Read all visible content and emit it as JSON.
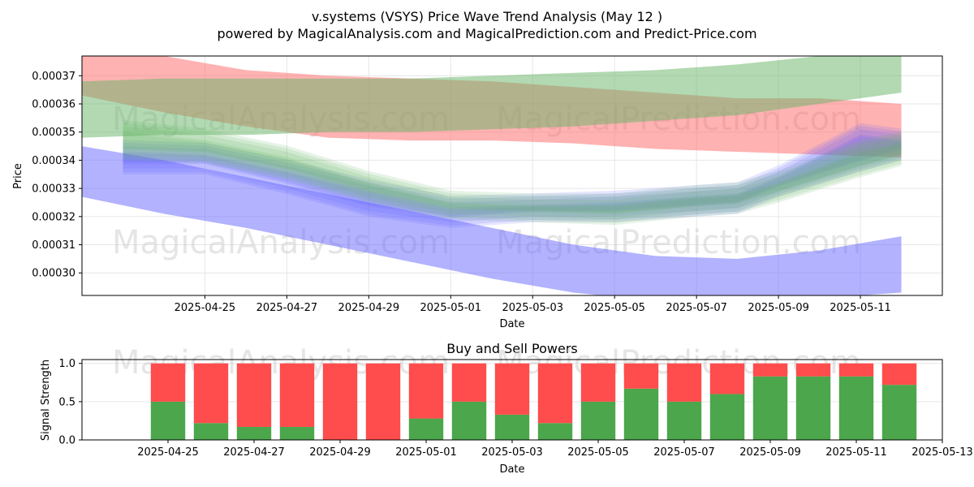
{
  "figure": {
    "title": "v.systems (VSYS) Price Wave Trend Analysis (May 12 )",
    "subtitle": "powered by MagicalAnalysis.com and MagicalPrediction.com and Predict-Price.com",
    "watermark_left": "MagicalAnalysis.com",
    "watermark_right": "MagicalPrediction.com"
  },
  "chart_data": [
    {
      "type": "area",
      "xlabel": "Date",
      "ylabel": "Price",
      "ylim": [
        0.000292,
        0.000377
      ],
      "xlim": [
        "2025-04-22",
        "2025-05-13"
      ],
      "grid": true,
      "x_ticks": [
        "2025-04-25",
        "2025-04-27",
        "2025-04-29",
        "2025-05-01",
        "2025-05-03",
        "2025-05-05",
        "2025-05-07",
        "2025-05-09",
        "2025-05-11"
      ],
      "y_ticks": [
        "0.00030",
        "0.00031",
        "0.00032",
        "0.00033",
        "0.00034",
        "0.00035",
        "0.00036",
        "0.00037"
      ],
      "colors": {
        "red": "#ff6666",
        "green": "#66b366",
        "blue": "#6666ff",
        "brown": "#9b8e6a"
      },
      "bands": [
        {
          "color": "red",
          "x": [
            "2025-04-22",
            "2025-04-24",
            "2025-04-26",
            "2025-04-28",
            "2025-04-30",
            "2025-05-02",
            "2025-05-04",
            "2025-05-06",
            "2025-05-08",
            "2025-05-10",
            "2025-05-12"
          ],
          "upper": [
            0.000378,
            0.000377,
            0.000372,
            0.00037,
            0.000369,
            0.000368,
            0.000366,
            0.000364,
            0.000362,
            0.000362,
            0.00036
          ],
          "lower": [
            0.000363,
            0.000357,
            0.000352,
            0.000348,
            0.000347,
            0.000347,
            0.000346,
            0.000344,
            0.000343,
            0.000342,
            0.000341
          ]
        },
        {
          "color": "green",
          "x": [
            "2025-04-22",
            "2025-04-24",
            "2025-04-26",
            "2025-04-28",
            "2025-04-30",
            "2025-05-02",
            "2025-05-04",
            "2025-05-06",
            "2025-05-08",
            "2025-05-10",
            "2025-05-12"
          ],
          "upper": [
            0.000368,
            0.000369,
            0.000369,
            0.000369,
            0.000369,
            0.00037,
            0.000371,
            0.000372,
            0.000374,
            0.000377,
            0.000378
          ],
          "lower": [
            0.000348,
            0.000349,
            0.000349,
            0.00035,
            0.00035,
            0.000351,
            0.000352,
            0.000354,
            0.000356,
            0.00036,
            0.000364
          ]
        },
        {
          "color": "blue",
          "x": [
            "2025-04-22",
            "2025-04-24",
            "2025-04-26",
            "2025-04-28",
            "2025-04-30",
            "2025-05-02",
            "2025-05-04",
            "2025-05-06",
            "2025-05-08",
            "2025-05-10",
            "2025-05-12"
          ],
          "upper": [
            0.000345,
            0.00034,
            0.000334,
            0.000328,
            0.000322,
            0.000316,
            0.00031,
            0.000306,
            0.000305,
            0.000308,
            0.000313
          ],
          "lower": [
            0.000327,
            0.000321,
            0.000316,
            0.00031,
            0.000304,
            0.000298,
            0.000293,
            0.00029,
            0.00029,
            0.000291,
            0.000293
          ]
        }
      ],
      "wave_bands": [
        {
          "color": "blue",
          "x": [
            "2025-04-23",
            "2025-04-25",
            "2025-04-27",
            "2025-04-29",
            "2025-05-01",
            "2025-05-03",
            "2025-05-05",
            "2025-05-07",
            "2025-05-08",
            "2025-05-09",
            "2025-05-11",
            "2025-05-12"
          ],
          "upper": [
            0.000345,
            0.000344,
            0.000338,
            0.000331,
            0.000325,
            0.000326,
            0.000327,
            0.000329,
            0.00033,
            0.000336,
            0.000351,
            0.000349
          ],
          "lower": [
            0.000337,
            0.000337,
            0.00033,
            0.000322,
            0.000318,
            0.00032,
            0.00032,
            0.000322,
            0.000323,
            0.000329,
            0.000338,
            0.000342
          ]
        },
        {
          "color": "green",
          "x": [
            "2025-04-23",
            "2025-04-25",
            "2025-04-27",
            "2025-04-29",
            "2025-05-01",
            "2025-05-03",
            "2025-05-05",
            "2025-05-07",
            "2025-05-08",
            "2025-05-09",
            "2025-05-11",
            "2025-05-12"
          ],
          "upper": [
            0.000352,
            0.000349,
            0.000343,
            0.000334,
            0.000327,
            0.000326,
            0.000326,
            0.000329,
            0.00033,
            0.000334,
            0.000345,
            0.000348
          ],
          "lower": [
            0.000342,
            0.000341,
            0.000335,
            0.000327,
            0.000321,
            0.00032,
            0.000319,
            0.000322,
            0.000323,
            0.000327,
            0.000336,
            0.00034
          ]
        }
      ]
    },
    {
      "type": "bar",
      "title": "Buy and Sell Powers",
      "xlabel": "Date",
      "ylabel": "Signal Strength",
      "ylim": [
        0,
        1.05
      ],
      "xlim": [
        "2025-04-23",
        "2025-05-13"
      ],
      "grid": true,
      "x_ticks": [
        "2025-04-25",
        "2025-04-27",
        "2025-04-29",
        "2025-05-01",
        "2025-05-03",
        "2025-05-05",
        "2025-05-07",
        "2025-05-09",
        "2025-05-11",
        "2025-05-13"
      ],
      "y_ticks": [
        "0.0",
        "0.5",
        "1.0"
      ],
      "categories": [
        "2025-04-25",
        "2025-04-26",
        "2025-04-27",
        "2025-04-28",
        "2025-04-29",
        "2025-04-30",
        "2025-05-01",
        "2025-05-02",
        "2025-05-03",
        "2025-05-04",
        "2025-05-05",
        "2025-05-06",
        "2025-05-07",
        "2025-05-08",
        "2025-05-09",
        "2025-05-10",
        "2025-05-11",
        "2025-05-12"
      ],
      "series": [
        {
          "values": [
            0.5,
            0.22,
            0.17,
            0.17,
            0.0,
            0.0,
            0.28,
            0.5,
            0.33,
            0.22,
            0.5,
            0.67,
            0.5,
            0.6,
            0.83,
            0.83,
            0.83,
            0.72
          ],
          "color": "#4ca64c"
        },
        {
          "values": [
            0.5,
            0.78,
            0.83,
            0.83,
            1.0,
            1.0,
            0.72,
            0.5,
            0.67,
            0.78,
            0.5,
            0.33,
            0.5,
            0.4,
            0.17,
            0.17,
            0.17,
            0.28
          ],
          "color": "#ff4c4c"
        }
      ]
    }
  ]
}
